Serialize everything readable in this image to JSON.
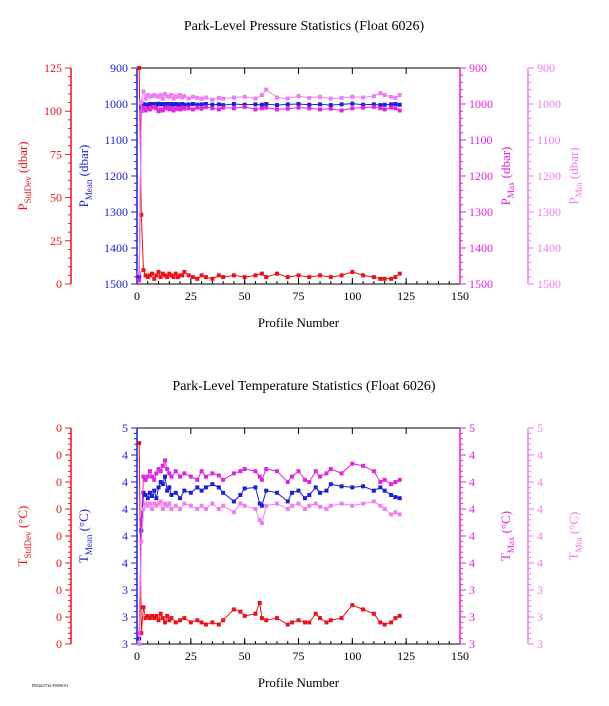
{
  "footer_note": "P0026/0726-P0008-03",
  "chart_data": [
    {
      "type": "line",
      "title": "Park-Level Pressure Statistics (Float 6026)",
      "xlabel": "Profile Number",
      "xlim": [
        0,
        150
      ],
      "xticks": [
        "0",
        "25",
        "50",
        "75",
        "100",
        "125",
        "150"
      ],
      "axes": {
        "stddev": {
          "label_main": "P",
          "label_sub": "StdDev",
          "label_unit": " (dbar)",
          "color": "#e8141b",
          "lim": [
            0,
            125
          ],
          "ticks": [
            "0",
            "25",
            "50",
            "75",
            "100",
            "125"
          ]
        },
        "mean": {
          "label_main": "P",
          "label_sub": "Mean",
          "label_unit": " (dbar)",
          "color": "#1f1fd0",
          "lim": [
            900,
            1500
          ],
          "ticks": [
            "900",
            "1000",
            "1100",
            "1200",
            "1300",
            "1400",
            "1500"
          ]
        },
        "max": {
          "label_main": "P",
          "label_sub": "Max",
          "label_unit": " (dbar)",
          "color": "#e024e0",
          "lim": [
            900,
            1500
          ],
          "ticks": [
            "900",
            "1000",
            "1100",
            "1200",
            "1300",
            "1400",
            "1500"
          ]
        },
        "min": {
          "label_main": "P",
          "label_sub": "Min",
          "label_unit": " (dbar)",
          "color": "#f07ef0",
          "lim": [
            900,
            1500
          ],
          "ticks": [
            "900",
            "1000",
            "1100",
            "1200",
            "1300",
            "1400",
            "1500"
          ]
        }
      },
      "x": [
        1,
        2,
        3,
        4,
        5,
        6,
        7,
        8,
        9,
        10,
        11,
        12,
        13,
        14,
        15,
        16,
        17,
        18,
        19,
        20,
        21,
        22,
        24,
        26,
        28,
        30,
        32,
        35,
        38,
        40,
        45,
        50,
        55,
        58,
        60,
        65,
        70,
        75,
        80,
        85,
        90,
        95,
        100,
        105,
        110,
        113,
        115,
        118,
        120,
        122
      ],
      "series": [
        {
          "axis": "stddev",
          "values": [
            125,
            40,
            8,
            5,
            4,
            5,
            6,
            3,
            5,
            7,
            4,
            6,
            5,
            4,
            6,
            5,
            4,
            6,
            4,
            5,
            5,
            7,
            5,
            4,
            3,
            5,
            4,
            3,
            5,
            4,
            5,
            4,
            5,
            6,
            4,
            6,
            4,
            5,
            4,
            5,
            4,
            5,
            7,
            5,
            4,
            3,
            3,
            3,
            4,
            6
          ]
        },
        {
          "axis": "mean",
          "values": [
            1480,
            1010,
            1000,
            1003,
            1002,
            1000,
            1001,
            1000,
            1002,
            999,
            1001,
            1000,
            1003,
            1000,
            1001,
            1000,
            1002,
            1000,
            1001,
            1003,
            1000,
            1002,
            1001,
            1000,
            1002,
            1001,
            1000,
            1002,
            1001,
            1003,
            1000,
            1002,
            1001,
            1002,
            1000,
            1003,
            1001,
            1000,
            1002,
            1001,
            1003,
            1001,
            999,
            1002,
            1001,
            1003,
            1002,
            1001,
            1000,
            1002
          ]
        },
        {
          "axis": "max",
          "values": [
            1490,
            1020,
            1010,
            1018,
            1012,
            1015,
            1010,
            1008,
            1012,
            1020,
            1015,
            1018,
            1012,
            1010,
            1015,
            1012,
            1018,
            1014,
            1012,
            1015,
            1010,
            1013,
            1012,
            1015,
            1010,
            1013,
            1008,
            1012,
            1015,
            1010,
            1012,
            1008,
            1015,
            1012,
            1010,
            1015,
            1013,
            1010,
            1012,
            1015,
            1013,
            1018,
            1012,
            1010,
            1008,
            1012,
            1015,
            1010,
            1012,
            1018
          ]
        },
        {
          "axis": "min",
          "values": [
            1470,
            995,
            965,
            985,
            975,
            980,
            978,
            975,
            978,
            980,
            975,
            985,
            972,
            978,
            980,
            975,
            985,
            978,
            980,
            975,
            982,
            978,
            985,
            980,
            983,
            985,
            982,
            988,
            983,
            985,
            982,
            980,
            985,
            975,
            960,
            982,
            985,
            978,
            983,
            980,
            985,
            983,
            980,
            982,
            978,
            970,
            975,
            980,
            983,
            975
          ]
        }
      ]
    },
    {
      "type": "line",
      "title": "Park-Level Temperature Statistics (Float 6026)",
      "xlabel": "Profile Number",
      "xlim": [
        0,
        150
      ],
      "xticks": [
        "0",
        "25",
        "50",
        "75",
        "100",
        "125",
        "150"
      ],
      "axes": {
        "stddev": {
          "label_main": "T",
          "label_sub": "StdDev",
          "label_unit": " (°C)",
          "color": "#e8141b",
          "lim": [
            0,
            1
          ],
          "ticks": [
            "0",
            "0",
            "0",
            "0",
            "0",
            "0",
            "0",
            "0",
            "0"
          ]
        },
        "mean": {
          "label_main": "T",
          "label_sub": "Mean",
          "label_unit": " (°C)",
          "color": "#1f1fd0",
          "lim": [
            3,
            5
          ],
          "ticks": [
            "3",
            "3",
            "3",
            "4",
            "4",
            "4",
            "4",
            "4",
            "5"
          ]
        },
        "max": {
          "label_main": "T",
          "label_sub": "Max",
          "label_unit": " (°C)",
          "color": "#e024e0",
          "lim": [
            3,
            5
          ],
          "ticks": [
            "3",
            "3",
            "3",
            "4",
            "4",
            "4",
            "4",
            "4",
            "5"
          ]
        },
        "min": {
          "label_main": "T",
          "label_sub": "Min",
          "label_unit": " (°C)",
          "color": "#f07ef0",
          "lim": [
            3,
            5
          ],
          "ticks": [
            "3",
            "3",
            "3",
            "4",
            "4",
            "4",
            "4",
            "4",
            "5"
          ]
        }
      },
      "x": [
        1,
        2,
        3,
        4,
        5,
        6,
        7,
        8,
        9,
        10,
        11,
        12,
        13,
        14,
        15,
        16,
        18,
        20,
        22,
        25,
        28,
        30,
        32,
        35,
        38,
        40,
        45,
        48,
        50,
        55,
        57,
        58,
        60,
        65,
        70,
        72,
        75,
        78,
        80,
        83,
        85,
        88,
        90,
        95,
        100,
        105,
        110,
        113,
        115,
        118,
        120,
        122
      ],
      "series": [
        {
          "axis": "stddev",
          "values": [
            0.93,
            0.05,
            0.17,
            0.12,
            0.13,
            0.12,
            0.13,
            0.12,
            0.13,
            0.11,
            0.14,
            0.12,
            0.1,
            0.13,
            0.11,
            0.12,
            0.1,
            0.11,
            0.12,
            0.1,
            0.11,
            0.1,
            0.09,
            0.1,
            0.09,
            0.11,
            0.16,
            0.15,
            0.13,
            0.14,
            0.19,
            0.12,
            0.11,
            0.12,
            0.09,
            0.1,
            0.11,
            0.1,
            0.1,
            0.14,
            0.12,
            0.1,
            0.11,
            0.12,
            0.18,
            0.16,
            0.14,
            0.1,
            0.09,
            0.1,
            0.12,
            0.13
          ]
        },
        {
          "axis": "mean",
          "values": [
            3.05,
            4.05,
            4.4,
            4.38,
            4.35,
            4.4,
            4.37,
            4.42,
            4.35,
            4.45,
            4.5,
            4.48,
            4.55,
            4.42,
            4.45,
            4.38,
            4.4,
            4.35,
            4.42,
            4.4,
            4.45,
            4.42,
            4.45,
            4.48,
            4.45,
            4.4,
            4.32,
            4.38,
            4.44,
            4.45,
            4.3,
            4.28,
            4.42,
            4.4,
            4.32,
            4.4,
            4.42,
            4.35,
            4.38,
            4.45,
            4.4,
            4.42,
            4.48,
            4.46,
            4.45,
            4.46,
            4.42,
            4.45,
            4.42,
            4.38,
            4.36,
            4.35
          ]
        },
        {
          "axis": "max",
          "values": [
            3.1,
            4.15,
            4.55,
            4.52,
            4.55,
            4.6,
            4.55,
            4.52,
            4.58,
            4.62,
            4.6,
            4.65,
            4.7,
            4.62,
            4.58,
            4.55,
            4.6,
            4.55,
            4.58,
            4.55,
            4.52,
            4.6,
            4.55,
            4.58,
            4.56,
            4.52,
            4.58,
            4.6,
            4.62,
            4.6,
            4.55,
            4.52,
            4.62,
            4.6,
            4.5,
            4.55,
            4.6,
            4.52,
            4.5,
            4.6,
            4.55,
            4.58,
            4.62,
            4.58,
            4.67,
            4.65,
            4.6,
            4.5,
            4.52,
            4.48,
            4.5,
            4.52
          ]
        },
        {
          "axis": "min",
          "values": [
            3.0,
            3.95,
            4.25,
            4.3,
            4.28,
            4.3,
            4.25,
            4.3,
            4.28,
            4.3,
            4.32,
            4.25,
            4.3,
            4.28,
            4.3,
            4.25,
            4.28,
            4.25,
            4.3,
            4.28,
            4.25,
            4.28,
            4.25,
            4.3,
            4.25,
            4.28,
            4.22,
            4.3,
            4.28,
            4.25,
            4.15,
            4.12,
            4.28,
            4.3,
            4.25,
            4.28,
            4.3,
            4.25,
            4.28,
            4.3,
            4.27,
            4.25,
            4.28,
            4.3,
            4.28,
            4.3,
            4.32,
            4.28,
            4.25,
            4.2,
            4.22,
            4.2
          ]
        }
      ]
    }
  ]
}
